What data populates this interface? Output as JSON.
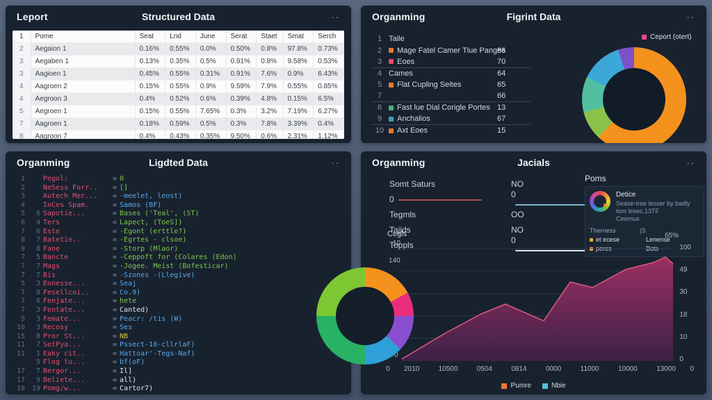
{
  "panels": {
    "structured": {
      "title_left": "Leport",
      "title_center": "Structured Data",
      "menu": "··",
      "table": {
        "header_num": "1",
        "columns": [
          "Pome",
          "Seat",
          "Lnd",
          "June",
          "Serat",
          "Staet",
          "Smat",
          "Serch"
        ],
        "rows": [
          {
            "n": "2",
            "name": "Aegaion 1",
            "values": [
              "0.16%",
              "0.55%",
              "0.0%",
              "0.50%",
              "0.8%",
              "97.8%",
              "0.73%"
            ]
          },
          {
            "n": "3",
            "name": "Aegaben 1",
            "values": [
              "0.13%",
              "0.35%",
              "0.5%",
              "0.91%",
              "0.8%",
              "9.58%",
              "0.53%"
            ]
          },
          {
            "n": "3",
            "name": "Aagioen 1",
            "values": [
              "0.45%",
              "0.55%",
              "0.31%",
              "0.91%",
              "7.6%",
              "0.9%",
              "6.43%"
            ]
          },
          {
            "n": "4",
            "name": "Aagroen 2",
            "values": [
              "0.15%",
              "0.55%",
              "0.9%",
              "9.59%",
              "7.9%",
              "0.55%",
              "0.85%"
            ]
          },
          {
            "n": "4",
            "name": "Aegroon 3",
            "values": [
              "0.4%",
              "0.52%",
              "0.6%",
              "0.39%",
              "4.8%",
              "0.15%",
              "6.5%"
            ]
          },
          {
            "n": "5",
            "name": "Aegroen 1",
            "values": [
              "0.15%",
              "0.55%",
              "7.65%",
              "0.3%",
              "3.2%",
              "7.19%",
              "6.27%"
            ]
          },
          {
            "n": "7",
            "name": "Aagroen 1",
            "values": [
              "0.18%",
              "0.59%",
              "0.5%",
              "0.3%",
              "7.8%",
              "3.39%",
              "0.4%"
            ]
          },
          {
            "n": "8",
            "name": "Aagroon 7",
            "values": [
              "0.4%",
              "0.43%",
              "0.35%",
              "9.50%",
              "0.6%",
              "2.31%",
              "1.12%"
            ]
          }
        ]
      }
    },
    "figrint": {
      "title_left": "Organming",
      "title_center": "Figrint Data",
      "menu": "··",
      "legend": {
        "label": "Ceport (otert)",
        "color": "#e84a8a"
      },
      "items": [
        {
          "n": "1",
          "label": "Taile",
          "value": "",
          "bullet": null,
          "divider": false
        },
        {
          "n": "2",
          "label": "Mage Fatel Camer Tlue Panges",
          "value": "86",
          "bullet": "#e8792e",
          "divider": false
        },
        {
          "n": "3",
          "label": "Eoes",
          "value": "70",
          "bullet": "#e84a6f",
          "divider": true
        },
        {
          "n": "4",
          "label": "Cames",
          "value": "64",
          "bullet": null,
          "divider": false
        },
        {
          "n": "5",
          "label": "Flat Cupling Seites",
          "value": "65",
          "bullet": "#e8792e",
          "divider": false
        },
        {
          "n": "7",
          "label": "",
          "value": "66",
          "bullet": null,
          "divider": true
        },
        {
          "n": "6",
          "label": "Fast lue Dial Corigle Portes",
          "value": "13",
          "bullet": "#4caf7d",
          "divider": false
        },
        {
          "n": "9",
          "label": "Anchalios",
          "value": "67",
          "bullet": "#3aa0b5",
          "divider": true
        },
        {
          "n": "10",
          "label": "Axt Eoes",
          "value": "15",
          "bullet": "#e8792e",
          "divider": false
        }
      ],
      "chart_data": {
        "type": "pie",
        "slices": [
          {
            "label": "Ceport (otert)",
            "value": 62,
            "color": "#f5921e"
          },
          {
            "label": "",
            "value": 9,
            "color": "#8bc34a"
          },
          {
            "label": "",
            "value": 11,
            "color": "#52bfa0"
          },
          {
            "label": "",
            "value": 13,
            "color": "#3ba8d8"
          },
          {
            "label": "",
            "value": 5,
            "color": "#7b52c8"
          }
        ]
      }
    },
    "ligdted": {
      "title_left": "Organming",
      "title_center": "Ligdted Data",
      "menu": "··",
      "lines": [
        {
          "n1": "1",
          "n2": "",
          "key": "Pegol:",
          "val": "0",
          "c": "g"
        },
        {
          "n1": "2",
          "n2": "",
          "key": "NeSess Forr..",
          "val": "[]",
          "c": "g"
        },
        {
          "n1": "3",
          "n2": "",
          "key": "Autech Mer...",
          "val": "-meelet, leost)",
          "c": "b"
        },
        {
          "n1": "4",
          "n2": "",
          "key": "InCes Spam.",
          "val": "Samos (BF)",
          "c": "b"
        },
        {
          "n1": "5",
          "n2": "6",
          "key": "Sapotie...",
          "val": "Bases ('Teal', (ST)",
          "c": "g"
        },
        {
          "n1": "6",
          "n2": "4",
          "key": "Ters",
          "val": "Lapect, (ToeS])",
          "c": "g"
        },
        {
          "n1": "7",
          "n2": "6",
          "key": "Este",
          "val": "-Egont (erttle?)",
          "c": "g"
        },
        {
          "n1": "8",
          "n2": "7",
          "key": "Batetie..",
          "val": "-Egrtes - clsoe)",
          "c": "g"
        },
        {
          "n1": "9",
          "n2": "8",
          "key": "Fane",
          "val": "-Storp (Mlaor)",
          "c": "g"
        },
        {
          "n1": "7",
          "n2": "5",
          "key": "Bancte",
          "val": "-Ceppoft for (Colares (Edon)",
          "c": "g"
        },
        {
          "n1": "7",
          "n2": "7",
          "key": "Mags",
          "val": "-Jogee. Meist (Bofesticar)",
          "c": "g"
        },
        {
          "n1": "7",
          "n2": "7",
          "key": "Bis",
          "val": "-Szones -(Llegive)",
          "c": "b"
        },
        {
          "n1": "5",
          "n2": "3",
          "key": "Eonesse...",
          "val": "Seaj",
          "c": "b"
        },
        {
          "n1": "7",
          "n2": "8",
          "key": "Fesellcoi..",
          "val": "Co.9)",
          "c": "b"
        },
        {
          "n1": "7",
          "n2": "6",
          "key": "Fenjate...",
          "val": "hete",
          "c": "g"
        },
        {
          "n1": "7",
          "n2": "3",
          "key": "Fentate...",
          "val": "Canted)",
          "c": "w"
        },
        {
          "n1": "5",
          "n2": "3",
          "key": "Femate...",
          "val": "Peacr: /tis (W)",
          "c": "b"
        },
        {
          "n1": "10",
          "n2": "3",
          "key": "Recosy",
          "val": "Ses",
          "c": "b"
        },
        {
          "n1": "15",
          "n2": "8",
          "key": "Pror St...",
          "val": "NB",
          "c": "y"
        },
        {
          "n1": "11",
          "n2": "7",
          "key": "SetPya...",
          "val": "Pssect-10-cllrlaF)",
          "c": "b"
        },
        {
          "n1": "11",
          "n2": "1",
          "key": "Eaky cit..",
          "val": "Hattoar'-Tegs-Naf)",
          "c": "b"
        },
        {
          "n1": "",
          "n2": "5",
          "key": "Flog tu...",
          "val": "bf(oF)",
          "c": "b"
        },
        {
          "n1": "17",
          "n2": "7",
          "key": "Bergor...",
          "val": "Il]",
          "c": "w"
        },
        {
          "n1": "17",
          "n2": "9",
          "key": "Beliete...",
          "val": "all)",
          "c": "w"
        },
        {
          "n1": "18",
          "n2": "19",
          "key": "Pomg/w...",
          "val": "Cartor7)",
          "c": "w"
        }
      ],
      "chart_data": {
        "type": "pie",
        "slices": [
          {
            "label": "",
            "value": 17,
            "color": "#f5921e"
          },
          {
            "label": "",
            "value": 8,
            "color": "#ea2e7c"
          },
          {
            "label": "",
            "value": 12,
            "color": "#8a4fd0"
          },
          {
            "label": "",
            "value": 13,
            "color": "#2e9fd8"
          },
          {
            "label": "",
            "value": 25,
            "color": "#27b264"
          },
          {
            "label": "",
            "value": 25,
            "color": "#7dc832"
          }
        ]
      }
    },
    "jacials": {
      "title_left": "Organming",
      "title_center": "Jacials",
      "menu": "··",
      "stats": {
        "r1c1": "Somt Saturs",
        "r1c2": "NO",
        "r2c1": "0",
        "r2c1_line": "#b5524e",
        "r2c2": "0",
        "r2c2_line": "#7fb6c9",
        "r3c1": "Tegmls",
        "r3c2": "OO",
        "r4c1": "Tajids",
        "r4c2": "NO",
        "r5c1": "Toppls",
        "r5c2": "0",
        "r5c2_line": "#dfe6ee"
      },
      "poms": {
        "title": "Poms",
        "name": "Detice",
        "line1": "Sease-tree lesser by badly",
        "line2": "tom lesec.13TF",
        "line3": "Ceemus",
        "col1_header": "Therness",
        "col2_header": "(S",
        "rows": [
          {
            "bullet": "#e6b23a",
            "label": "et ecese",
            "value": "Lenense"
          },
          {
            "bullet": "#e6b23a",
            "label": "peres",
            "value": "Bots"
          }
        ]
      },
      "chart_data": {
        "type": "area",
        "title": "Cegls",
        "corner_label": "65%",
        "left_ticks": [
          "10",
          "140",
          "0"
        ],
        "right_ticks": [
          "100",
          "49",
          "30",
          "18",
          "10",
          "0"
        ],
        "x_zero_left": "0",
        "x_zero_right": "0",
        "x_labels": [
          "2010",
          "10500",
          "0504",
          "0814",
          "0000",
          "11000",
          "10000",
          "13000"
        ],
        "legend": [
          {
            "label": "Pumre",
            "color": "#f07830"
          },
          {
            "label": "Nbie",
            "color": "#4fc3d7"
          }
        ],
        "stroke": "#e05c7e",
        "fill_top": "#9c2f63",
        "fill_bottom": "#3c2147",
        "path_points": [
          [
            0,
            172
          ],
          [
            62,
            135
          ],
          [
            114,
            107
          ],
          [
            149,
            93
          ],
          [
            204,
            117
          ],
          [
            242,
            61
          ],
          [
            274,
            69
          ],
          [
            322,
            43
          ],
          [
            362,
            33
          ],
          [
            379,
            25
          ],
          [
            390,
            35
          ]
        ]
      }
    }
  }
}
